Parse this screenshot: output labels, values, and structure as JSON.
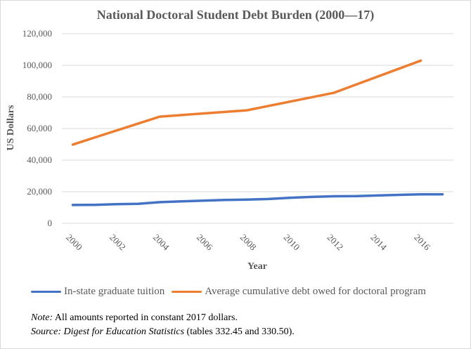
{
  "chart_data": {
    "type": "line",
    "title": "National Doctoral Student Debt Burden (2000—17)",
    "xlabel": "Year",
    "ylabel": "US Dollars",
    "x": [
      2000,
      2001,
      2002,
      2003,
      2004,
      2005,
      2006,
      2007,
      2008,
      2009,
      2010,
      2011,
      2012,
      2013,
      2014,
      2015,
      2016,
      2017
    ],
    "x_ticks": [
      "2000",
      "2002",
      "2004",
      "2006",
      "2008",
      "2010",
      "2012",
      "2014",
      "2016"
    ],
    "y_ticks": [
      "0",
      "20,000",
      "40,000",
      "60,000",
      "80,000",
      "100,000",
      "120,000"
    ],
    "ylim": [
      0,
      120000
    ],
    "grid": true,
    "legend_position": "bottom",
    "series": [
      {
        "name": "In-state graduate tuition",
        "color": "#4472C4",
        "x": [
          2000,
          2001,
          2002,
          2003,
          2004,
          2005,
          2006,
          2007,
          2008,
          2009,
          2010,
          2011,
          2012,
          2013,
          2014,
          2015,
          2016,
          2017
        ],
        "values": [
          11600,
          11700,
          12100,
          12300,
          13400,
          13900,
          14300,
          14800,
          15000,
          15400,
          16200,
          16700,
          17100,
          17200,
          17600,
          18000,
          18300,
          18300
        ]
      },
      {
        "name": "Average cumulative debt owed for doctoral program",
        "color": "#ED7D31",
        "x": [
          2000,
          2004,
          2008,
          2012,
          2016
        ],
        "values": [
          49800,
          67500,
          71500,
          82600,
          103000
        ]
      }
    ]
  },
  "notes": {
    "note_label": "Note:",
    "note_text": " All amounts reported in constant 2017 dollars.",
    "source_label": "Source:",
    "source_title": "Digest for Education Statistics",
    "source_text": " (tables 332.45 and 330.50)."
  }
}
